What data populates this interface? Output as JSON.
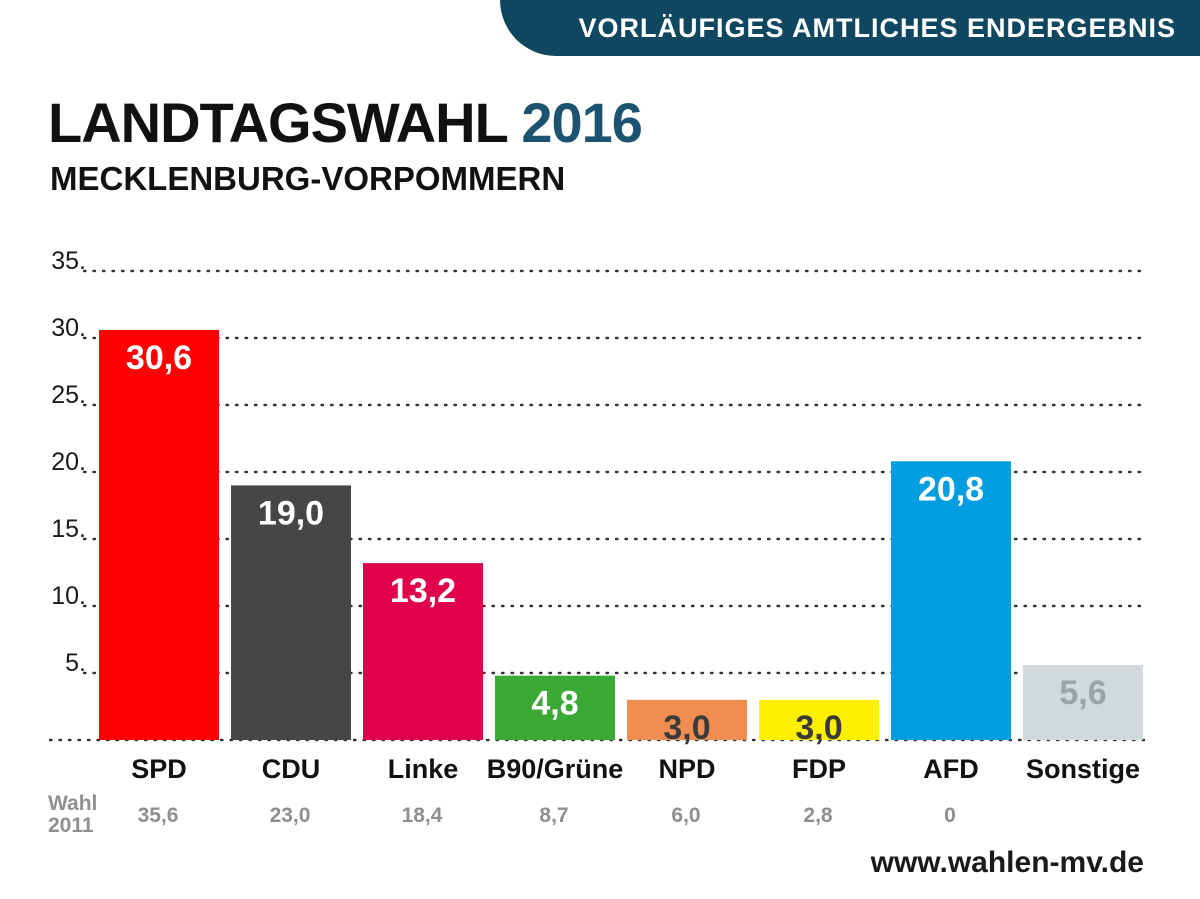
{
  "banner": {
    "text": "VORLÄUFIGES AMTLICHES ENDERGEBNIS"
  },
  "header": {
    "title": "LANDTAGSWAHL",
    "year": "2016",
    "subtitle": "MECKLENBURG-VORPOMMERN"
  },
  "footer": {
    "url": "www.wahlen-mv.de"
  },
  "colors": {
    "banner": "#0f4660",
    "year": "#1b5370",
    "SPD": "#ff0000",
    "CDU": "#464646",
    "Linke": "#e2004a",
    "B90/Grüne": "#3ba935",
    "NPD": "#ef8e50",
    "FDP": "#fff000",
    "AFD": "#009ee0",
    "Sonstige": "#d2d9dc"
  },
  "chart_data": {
    "type": "bar",
    "title": "LANDTAGSWAHL 2016",
    "subtitle": "MECKLENBURG-VORPOMMERN",
    "categories": [
      "SPD",
      "CDU",
      "Linke",
      "B90/Grüne",
      "NPD",
      "FDP",
      "AFD",
      "Sonstige"
    ],
    "values": [
      30.6,
      19.0,
      13.2,
      4.8,
      3.0,
      3.0,
      20.8,
      5.6
    ],
    "value_labels": [
      "30,6",
      "19,0",
      "13,2",
      "4,8",
      "3,0",
      "3,0",
      "20,8",
      "5,6"
    ],
    "label_colors": [
      "#ffffff",
      "#ffffff",
      "#ffffff",
      "#ffffff",
      "#3a3a3a",
      "#3a3a3a",
      "#ffffff",
      "#9aa3a7"
    ],
    "yticks": [
      5,
      10,
      15,
      20,
      25,
      30,
      35
    ],
    "ytick_labels": [
      "5",
      "10",
      "15",
      "20",
      "25",
      "30",
      "35"
    ],
    "ylim": [
      0,
      35
    ],
    "grid": "dotted",
    "previous": {
      "label_line1": "Wahl",
      "label_line2": "2011",
      "values": [
        "35,6",
        "23,0",
        "18,4",
        "8,7",
        "6,0",
        "2,8",
        "0",
        ""
      ]
    }
  }
}
